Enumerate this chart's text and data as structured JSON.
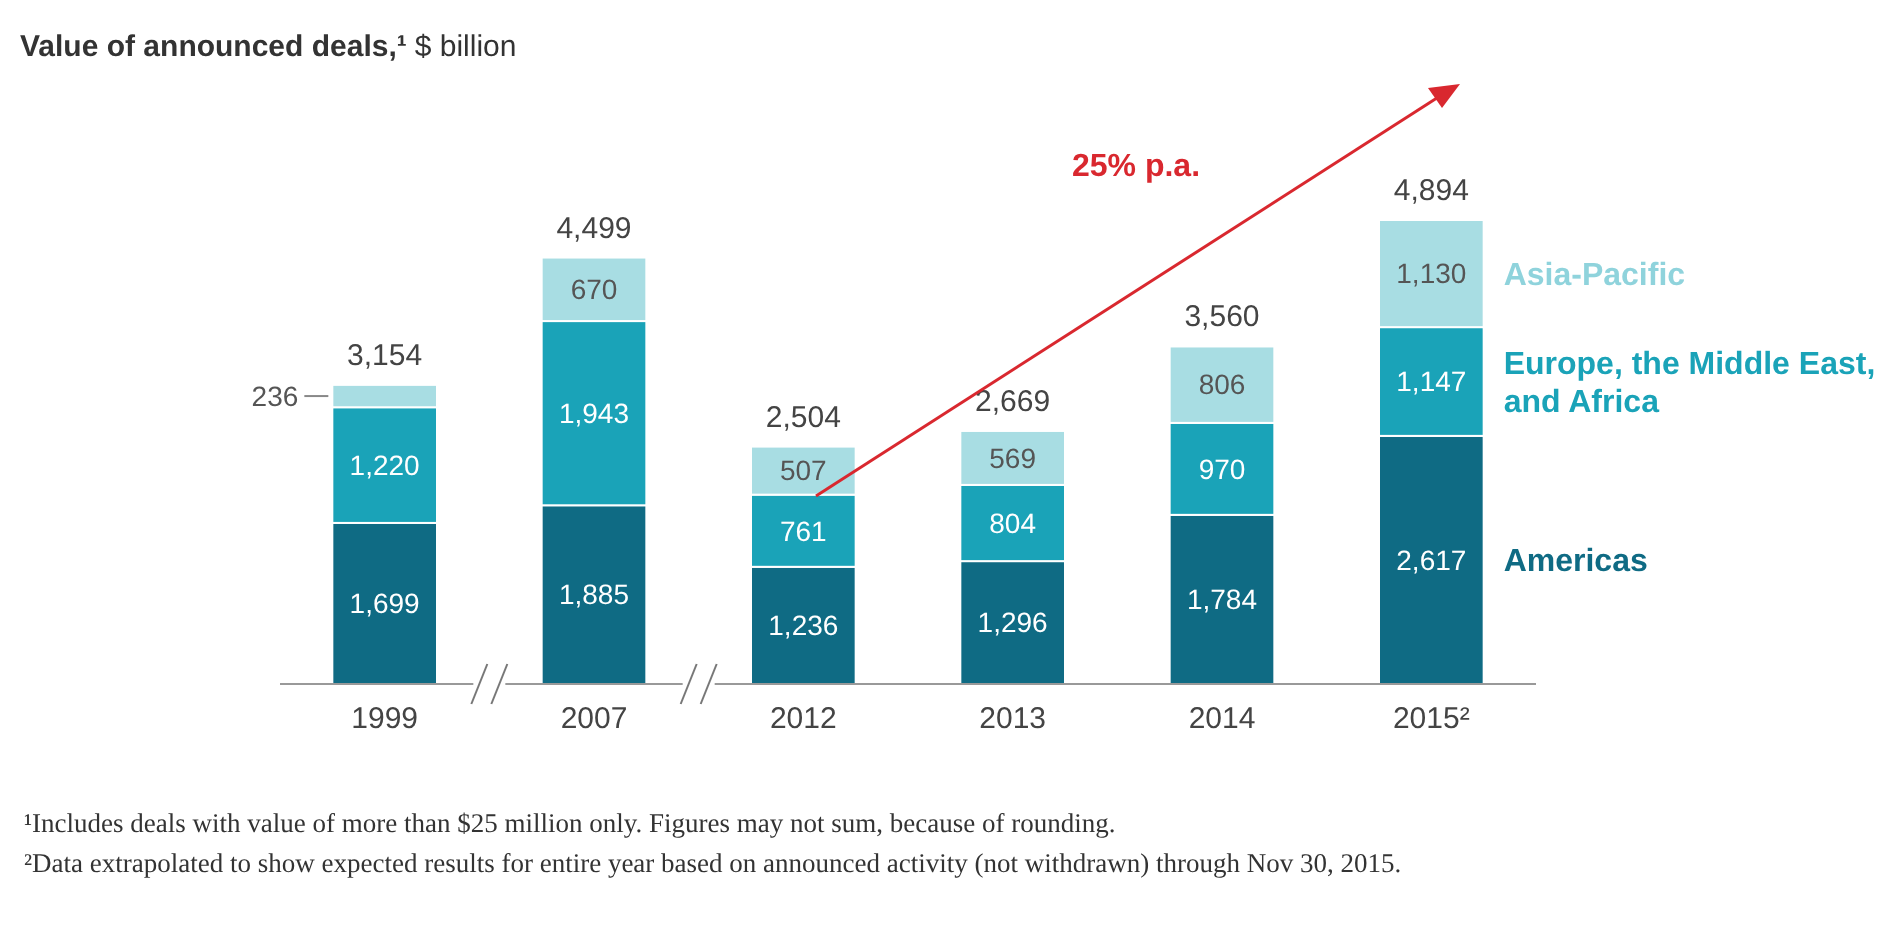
{
  "chart_data": {
    "type": "bar",
    "stacked": true,
    "title": "Value of announced deals,¹",
    "subtitle": "$ billion",
    "categories": [
      "1999",
      "2007",
      "2012",
      "2013",
      "2014",
      "2015²"
    ],
    "series": [
      {
        "name": "Americas",
        "color": "#0f6b84",
        "values": [
          1699,
          1885,
          1236,
          1296,
          1784,
          2617
        ],
        "value_labels": [
          "1,699",
          "1,885",
          "1,236",
          "1,296",
          "1,784",
          "2,617"
        ]
      },
      {
        "name": "Europe, the Middle East, and Africa",
        "color": "#1aa3b8",
        "values": [
          1220,
          1943,
          761,
          804,
          970,
          1147
        ],
        "value_labels": [
          "1,220",
          "1,943",
          "761",
          "804",
          "970",
          "1,147"
        ]
      },
      {
        "name": "Asia-Pacific",
        "color": "#a8dde3",
        "values": [
          236,
          670,
          507,
          569,
          806,
          1130
        ],
        "value_labels": [
          "236",
          "670",
          "507",
          "569",
          "806",
          "1,130"
        ]
      }
    ],
    "totals": [
      "3,154",
      "4,499",
      "2,504",
      "2,669",
      "3,560",
      "4,894"
    ],
    "legend": "right",
    "annotations": [
      "25% p.a.",
      "¹Includes deals with value of more than $25 million only. Figures may not sum, because of rounding.",
      "²Data extrapolated to show expected results for entire year based on announced activity (not withdrawn) through Nov 30, 2015."
    ]
  }
}
